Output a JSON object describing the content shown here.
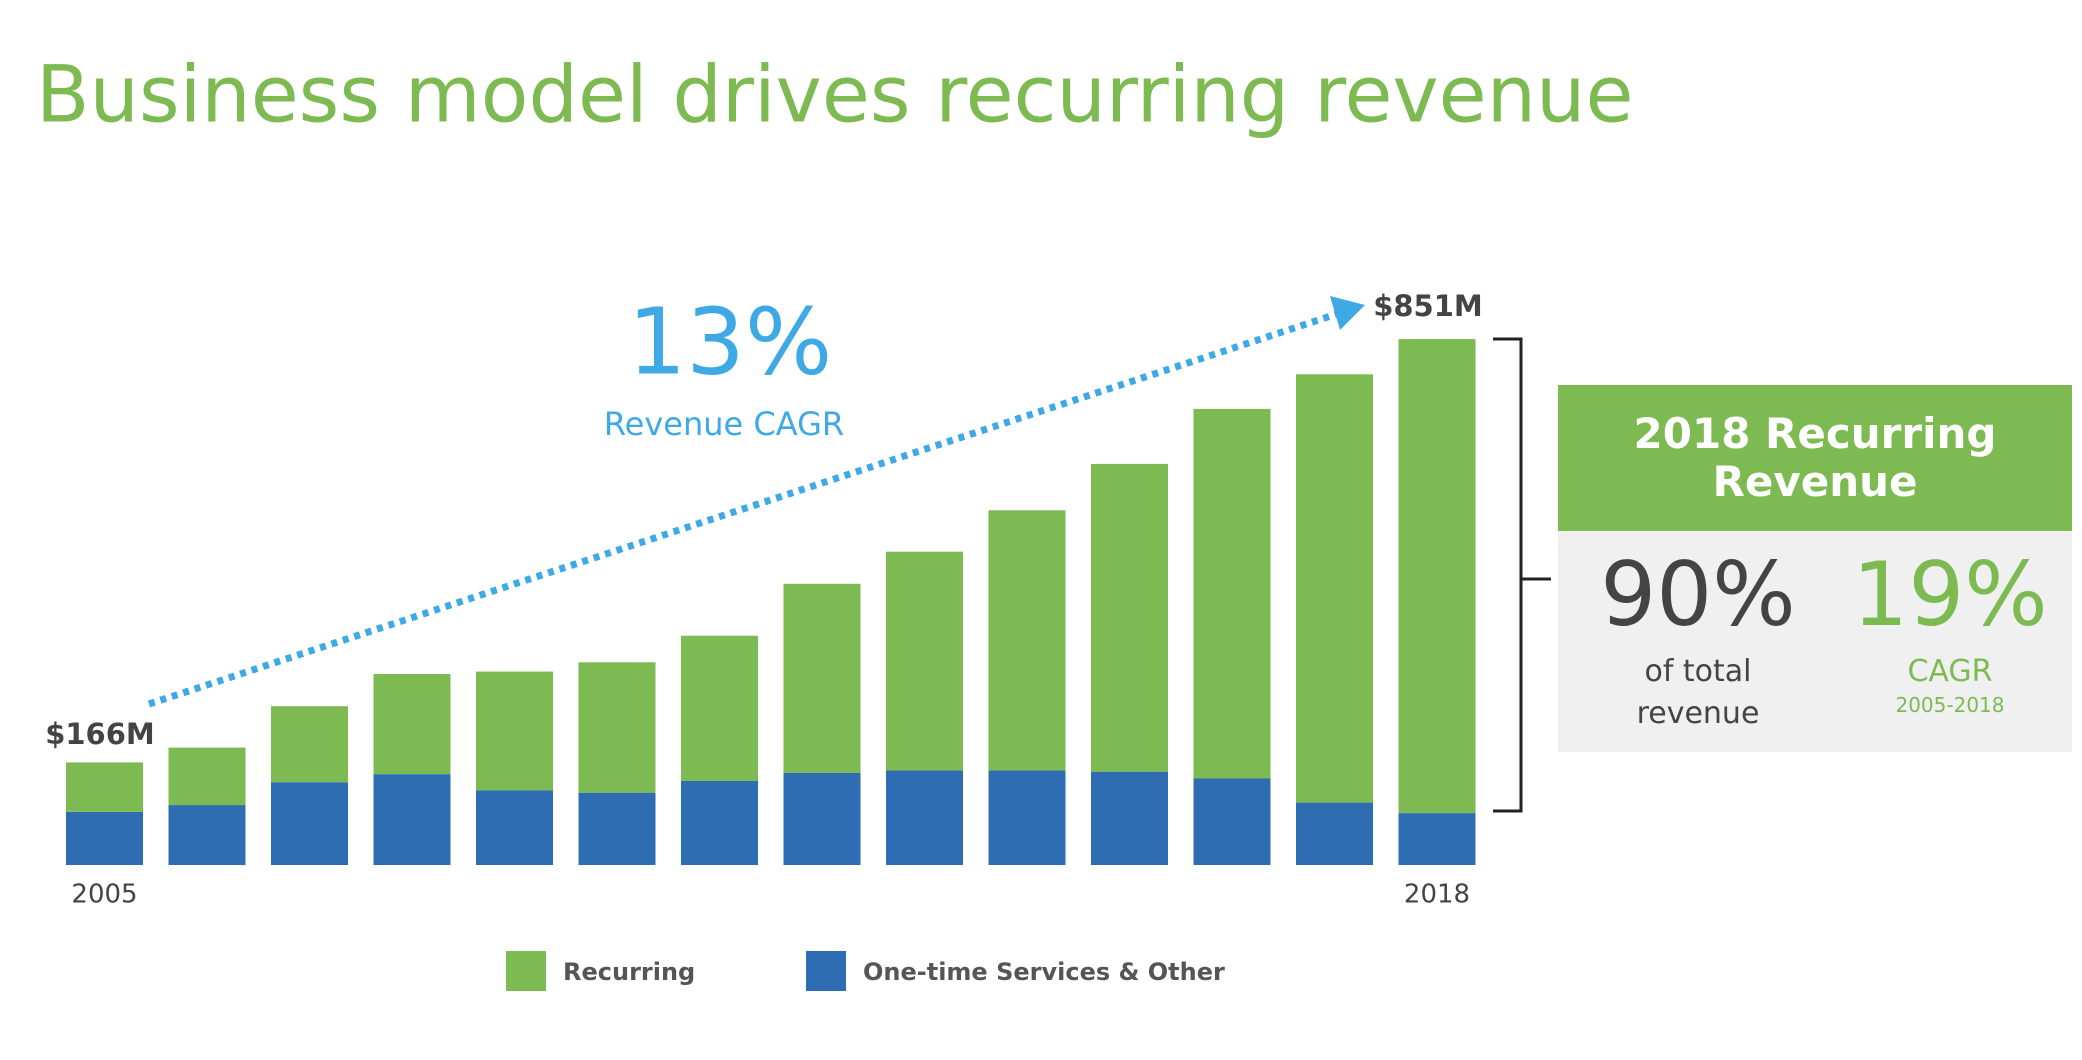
{
  "chart_data": {
    "type": "stacked_bar",
    "title": "Business model drives recurring revenue",
    "categories": [
      "2005",
      null,
      null,
      null,
      null,
      null,
      null,
      null,
      null,
      null,
      null,
      null,
      null,
      "2018"
    ],
    "series": [
      {
        "name": "Recurring",
        "color": "#7dba52",
        "values": [
          80,
          93,
          123,
          162,
          192,
          211,
          235,
          306,
          354,
          421,
          498,
          598,
          693,
          767
        ]
      },
      {
        "name": "One-time Services & Other",
        "color": "#2f6db3",
        "values": [
          86,
          97,
          134,
          147,
          121,
          117,
          136,
          149,
          153,
          153,
          151,
          140,
          101,
          84
        ]
      }
    ],
    "ylim": [
      0,
      1000
    ],
    "annotations": {
      "start_total": "$166M",
      "end_total": "$851M",
      "cagr": "13%",
      "cagr_label": "Revenue CAGR"
    },
    "callout": {
      "title": "2018 Recurring Revenue",
      "stats": [
        {
          "value": "90%",
          "label": "of total revenue"
        },
        {
          "value": "19%",
          "label": "CAGR",
          "sublabel": "2005-2018"
        }
      ]
    }
  }
}
